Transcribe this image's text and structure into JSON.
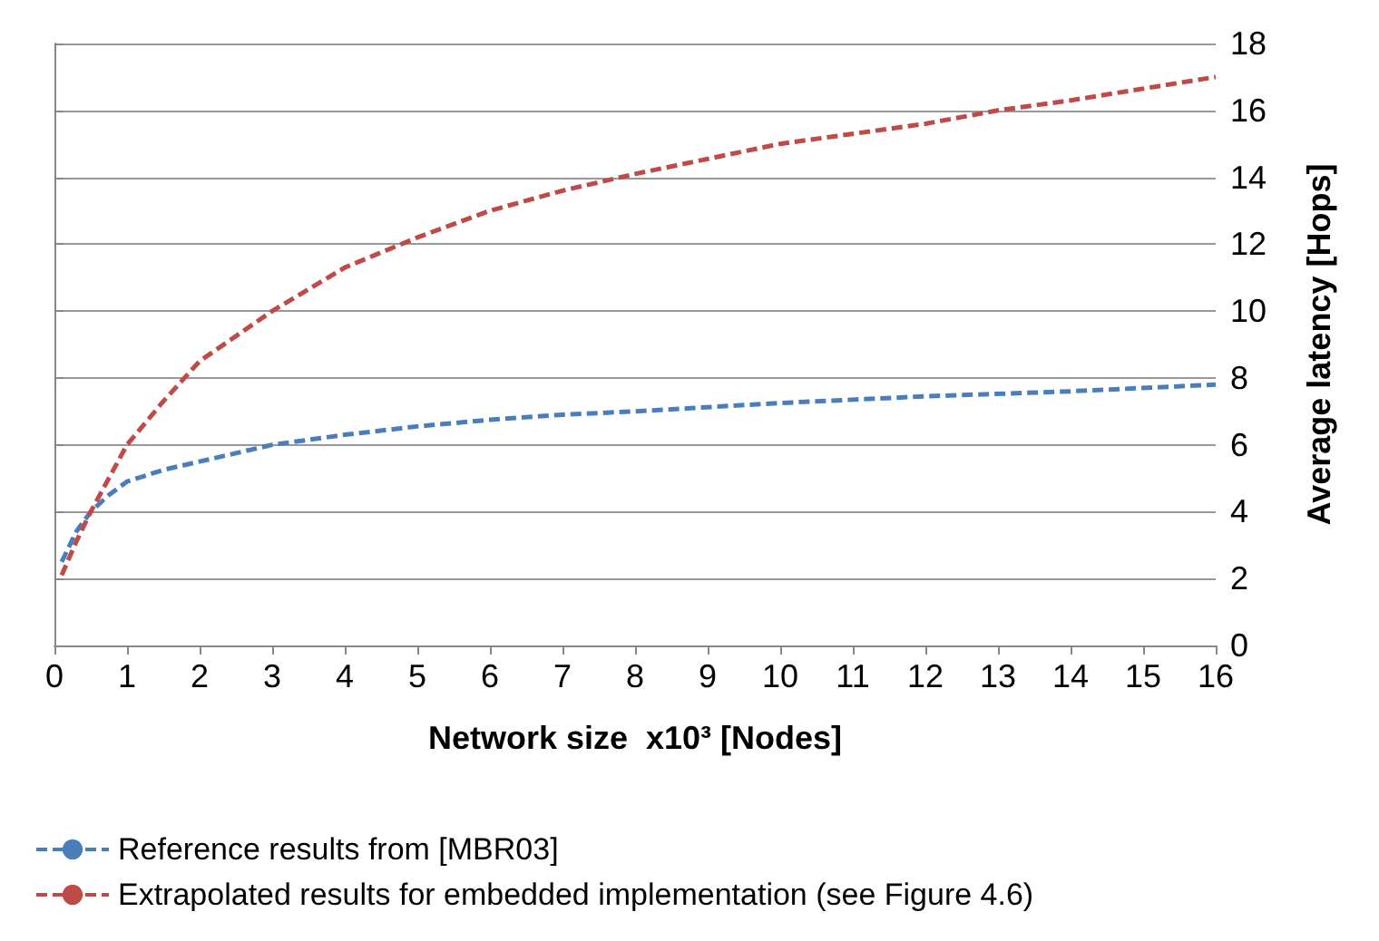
{
  "chart_data": {
    "type": "line",
    "xlabel": "Network size  x10³ [Nodes]",
    "ylabel": "Average latency [Hops]",
    "xlim": [
      0,
      16
    ],
    "xticks": [
      0,
      1,
      2,
      3,
      4,
      5,
      6,
      7,
      8,
      9,
      10,
      11,
      12,
      13,
      14,
      15,
      16
    ],
    "ylim": [
      0,
      18
    ],
    "yticks": [
      0,
      2,
      4,
      6,
      8,
      10,
      12,
      14,
      16,
      18
    ],
    "grid": "y",
    "legend": "bottom",
    "marker": "none",
    "series": [
      {
        "name": "Reference results from [MBR03]",
        "color": "#4a7ebb",
        "line_style": "dashed",
        "x": [
          0.1,
          0.3,
          0.5,
          0.75,
          1,
          1.5,
          2,
          3,
          4,
          5,
          6,
          7,
          8,
          10,
          12,
          14,
          16
        ],
        "values": [
          2.5,
          3.4,
          4.0,
          4.5,
          4.9,
          5.25,
          5.5,
          6.0,
          6.3,
          6.55,
          6.75,
          6.9,
          7.0,
          7.25,
          7.45,
          7.6,
          7.8
        ]
      },
      {
        "name": "Extrapolated results for embedded implementation (see Figure 4.6)",
        "color": "#be4b48",
        "line_style": "dashed",
        "x": [
          0.1,
          0.3,
          0.5,
          0.75,
          1,
          1.5,
          2,
          3,
          4,
          5,
          6,
          7,
          8,
          10,
          12,
          13,
          14,
          16
        ],
        "values": [
          2.1,
          3.1,
          4.0,
          5.0,
          6.0,
          7.3,
          8.5,
          10.0,
          11.3,
          12.2,
          13.0,
          13.6,
          14.1,
          15.0,
          15.6,
          16.0,
          16.3,
          17.0
        ]
      }
    ]
  }
}
